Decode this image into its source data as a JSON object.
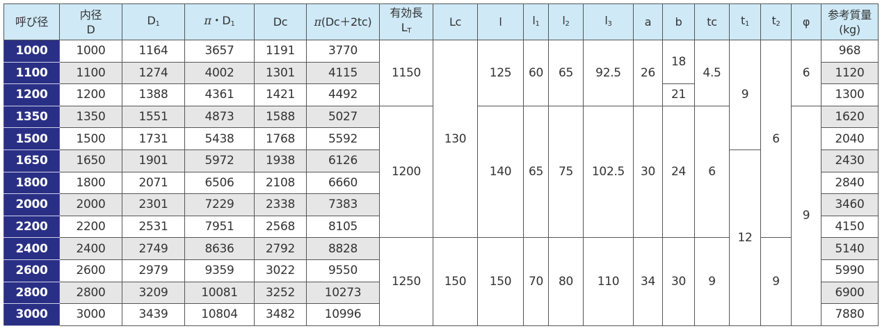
{
  "headers": [
    {
      "key": "nominal",
      "label": "呼び径"
    },
    {
      "key": "D",
      "label": "内径",
      "label2": "D"
    },
    {
      "key": "D1",
      "label": "D",
      "sub": "1"
    },
    {
      "key": "piD1",
      "pi": "π",
      "label": "・D",
      "sub": "1"
    },
    {
      "key": "Dc",
      "label": "Dc"
    },
    {
      "key": "piDc",
      "pi": "π",
      "label": "(Dc＋2tc)"
    },
    {
      "key": "LT",
      "label": "有効長",
      "label2": "L",
      "sub2": "T"
    },
    {
      "key": "Lc",
      "label": "Lc"
    },
    {
      "key": "l",
      "label": "l"
    },
    {
      "key": "l1",
      "label": "l",
      "sub": "1"
    },
    {
      "key": "l2",
      "label": "l",
      "sub": "2"
    },
    {
      "key": "l3",
      "label": "l",
      "sub": "3"
    },
    {
      "key": "a",
      "label": "a"
    },
    {
      "key": "b",
      "label": "b"
    },
    {
      "key": "tc",
      "label": "tc"
    },
    {
      "key": "t1",
      "label": "t",
      "sub": "1"
    },
    {
      "key": "t2",
      "label": "t",
      "sub": "2"
    },
    {
      "key": "phi",
      "label": "φ"
    },
    {
      "key": "mass",
      "label": "参考質量",
      "label2": "(kg)"
    }
  ],
  "rows": [
    {
      "nominal": "1000",
      "D": "1000",
      "D1": "1164",
      "piD1": "3657",
      "Dc": "1191",
      "piDc": "3770",
      "mass": "968"
    },
    {
      "nominal": "1100",
      "D": "1100",
      "D1": "1274",
      "piD1": "4002",
      "Dc": "1301",
      "piDc": "4115",
      "mass": "1120"
    },
    {
      "nominal": "1200",
      "D": "1200",
      "D1": "1388",
      "piD1": "4361",
      "Dc": "1421",
      "piDc": "4492",
      "mass": "1300"
    },
    {
      "nominal": "1350",
      "D": "1350",
      "D1": "1551",
      "piD1": "4873",
      "Dc": "1588",
      "piDc": "5027",
      "mass": "1620"
    },
    {
      "nominal": "1500",
      "D": "1500",
      "D1": "1731",
      "piD1": "5438",
      "Dc": "1768",
      "piDc": "5592",
      "mass": "2040"
    },
    {
      "nominal": "1650",
      "D": "1650",
      "D1": "1901",
      "piD1": "5972",
      "Dc": "1938",
      "piDc": "6126",
      "mass": "2430"
    },
    {
      "nominal": "1800",
      "D": "1800",
      "D1": "2071",
      "piD1": "6506",
      "Dc": "2108",
      "piDc": "6660",
      "mass": "2840"
    },
    {
      "nominal": "2000",
      "D": "2000",
      "D1": "2301",
      "piD1": "7229",
      "Dc": "2338",
      "piDc": "7383",
      "mass": "3460"
    },
    {
      "nominal": "2200",
      "D": "2200",
      "D1": "2531",
      "piD1": "7951",
      "Dc": "2568",
      "piDc": "8105",
      "mass": "4150"
    },
    {
      "nominal": "2400",
      "D": "2400",
      "D1": "2749",
      "piD1": "8636",
      "Dc": "2792",
      "piDc": "8828",
      "mass": "5140"
    },
    {
      "nominal": "2600",
      "D": "2600",
      "D1": "2979",
      "piD1": "9359",
      "Dc": "3022",
      "piDc": "9550",
      "mass": "5990"
    },
    {
      "nominal": "2800",
      "D": "2800",
      "D1": "3209",
      "piD1": "10081",
      "Dc": "3252",
      "piDc": "10273",
      "mass": "6900"
    },
    {
      "nominal": "3000",
      "D": "3000",
      "D1": "3439",
      "piD1": "10804",
      "Dc": "3482",
      "piDc": "10996",
      "mass": "7880"
    }
  ],
  "merged": {
    "LT": [
      {
        "from": 1,
        "to": 3,
        "value": "1150"
      },
      {
        "from": 4,
        "to": 9,
        "value": "1200"
      },
      {
        "from": 10,
        "to": 13,
        "value": "1250"
      }
    ],
    "Lc": [
      {
        "from": 1,
        "to": 9,
        "value": "130"
      },
      {
        "from": 10,
        "to": 13,
        "value": "150"
      }
    ],
    "l": [
      {
        "from": 1,
        "to": 3,
        "value": "125"
      },
      {
        "from": 4,
        "to": 9,
        "value": "140"
      },
      {
        "from": 10,
        "to": 13,
        "value": "150"
      }
    ],
    "l1": [
      {
        "from": 1,
        "to": 3,
        "value": "60"
      },
      {
        "from": 4,
        "to": 9,
        "value": "65"
      },
      {
        "from": 10,
        "to": 13,
        "value": "70"
      }
    ],
    "l2": [
      {
        "from": 1,
        "to": 3,
        "value": "65"
      },
      {
        "from": 4,
        "to": 9,
        "value": "75"
      },
      {
        "from": 10,
        "to": 13,
        "value": "80"
      }
    ],
    "l3": [
      {
        "from": 1,
        "to": 3,
        "value": "92.5"
      },
      {
        "from": 4,
        "to": 9,
        "value": "102.5"
      },
      {
        "from": 10,
        "to": 13,
        "value": "110"
      }
    ],
    "a": [
      {
        "from": 1,
        "to": 3,
        "value": "26"
      },
      {
        "from": 4,
        "to": 9,
        "value": "30"
      },
      {
        "from": 10,
        "to": 13,
        "value": "34"
      }
    ],
    "b": [
      {
        "from": 1,
        "to": 2,
        "value": "18"
      },
      {
        "from": 3,
        "to": 3,
        "value": "21"
      },
      {
        "from": 4,
        "to": 9,
        "value": "24"
      },
      {
        "from": 10,
        "to": 13,
        "value": "30"
      }
    ],
    "tc": [
      {
        "from": 1,
        "to": 3,
        "value": "4.5"
      },
      {
        "from": 4,
        "to": 9,
        "value": "6"
      },
      {
        "from": 10,
        "to": 13,
        "value": "9"
      }
    ],
    "t1": [
      {
        "from": 1,
        "to": 5,
        "value": "9"
      },
      {
        "from": 6,
        "to": 13,
        "value": "12"
      }
    ],
    "t2": [
      {
        "from": 1,
        "to": 9,
        "value": "6"
      },
      {
        "from": 10,
        "to": 13,
        "value": "9"
      }
    ],
    "phi": [
      {
        "from": 1,
        "to": 3,
        "value": "6"
      },
      {
        "from": 4,
        "to": 13,
        "value": "9"
      }
    ]
  },
  "colors": {
    "header_bg": "#cfe9f7",
    "nominal_bg": "#2a2f86",
    "stripe": "#e6e6e6"
  }
}
